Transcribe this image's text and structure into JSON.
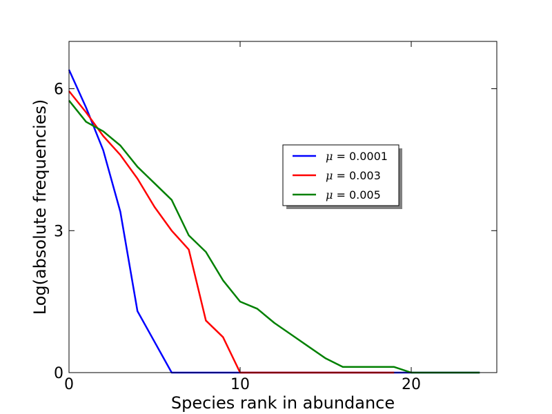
{
  "chart_data": {
    "type": "line",
    "title": "",
    "xlabel": "Species rank in abundance",
    "ylabel": "Log(absolute frequencies)",
    "xlim": [
      0,
      25
    ],
    "ylim": [
      0,
      7
    ],
    "xticks": [
      0,
      10,
      20
    ],
    "xtick_labels": [
      "0",
      "10",
      "20"
    ],
    "yticks": [
      0,
      3,
      6
    ],
    "ytick_labels": [
      "0",
      "3",
      "6"
    ],
    "grid": false,
    "legend_position": "center-right",
    "series": [
      {
        "name": "μ = 0.0001",
        "name_symbol": "μ",
        "name_rest": " = 0.0001",
        "color": "#0000ff",
        "x": [
          0,
          1,
          2,
          3,
          4,
          5,
          6,
          7,
          8,
          9,
          10,
          11,
          12,
          13,
          14,
          15,
          16,
          17,
          18,
          19,
          20,
          21,
          22,
          23,
          24
        ],
        "y": [
          6.4,
          5.6,
          4.7,
          3.4,
          1.3,
          0.65,
          0,
          0,
          0,
          0,
          0,
          0,
          0,
          0,
          0,
          0,
          0,
          0,
          0,
          0,
          0,
          0,
          0,
          0,
          0
        ]
      },
      {
        "name": "μ = 0.003",
        "name_symbol": "μ",
        "name_rest": " = 0.003",
        "color": "#ff0000",
        "x": [
          0,
          1,
          2,
          3,
          4,
          5,
          6,
          7,
          8,
          9,
          10,
          11,
          12,
          13,
          14,
          15,
          16,
          17,
          18,
          19
        ],
        "y": [
          5.95,
          5.5,
          5.0,
          4.6,
          4.1,
          3.5,
          3.0,
          2.6,
          1.1,
          0.75,
          0,
          0,
          0,
          0,
          0,
          0,
          0,
          0,
          0,
          0
        ]
      },
      {
        "name": "μ = 0.005",
        "name_symbol": "μ",
        "name_rest": " = 0.005",
        "color": "#008000",
        "x": [
          0,
          1,
          2,
          3,
          4,
          5,
          6,
          7,
          8,
          9,
          10,
          11,
          12,
          13,
          14,
          15,
          16,
          17,
          18,
          19,
          20,
          21,
          22,
          23,
          24
        ],
        "y": [
          5.75,
          5.3,
          5.1,
          4.8,
          4.35,
          4.0,
          3.65,
          2.9,
          2.55,
          1.95,
          1.5,
          1.35,
          1.05,
          0.8,
          0.55,
          0.3,
          0.12,
          0.12,
          0.12,
          0.12,
          0,
          0,
          0,
          0,
          0
        ]
      }
    ]
  }
}
